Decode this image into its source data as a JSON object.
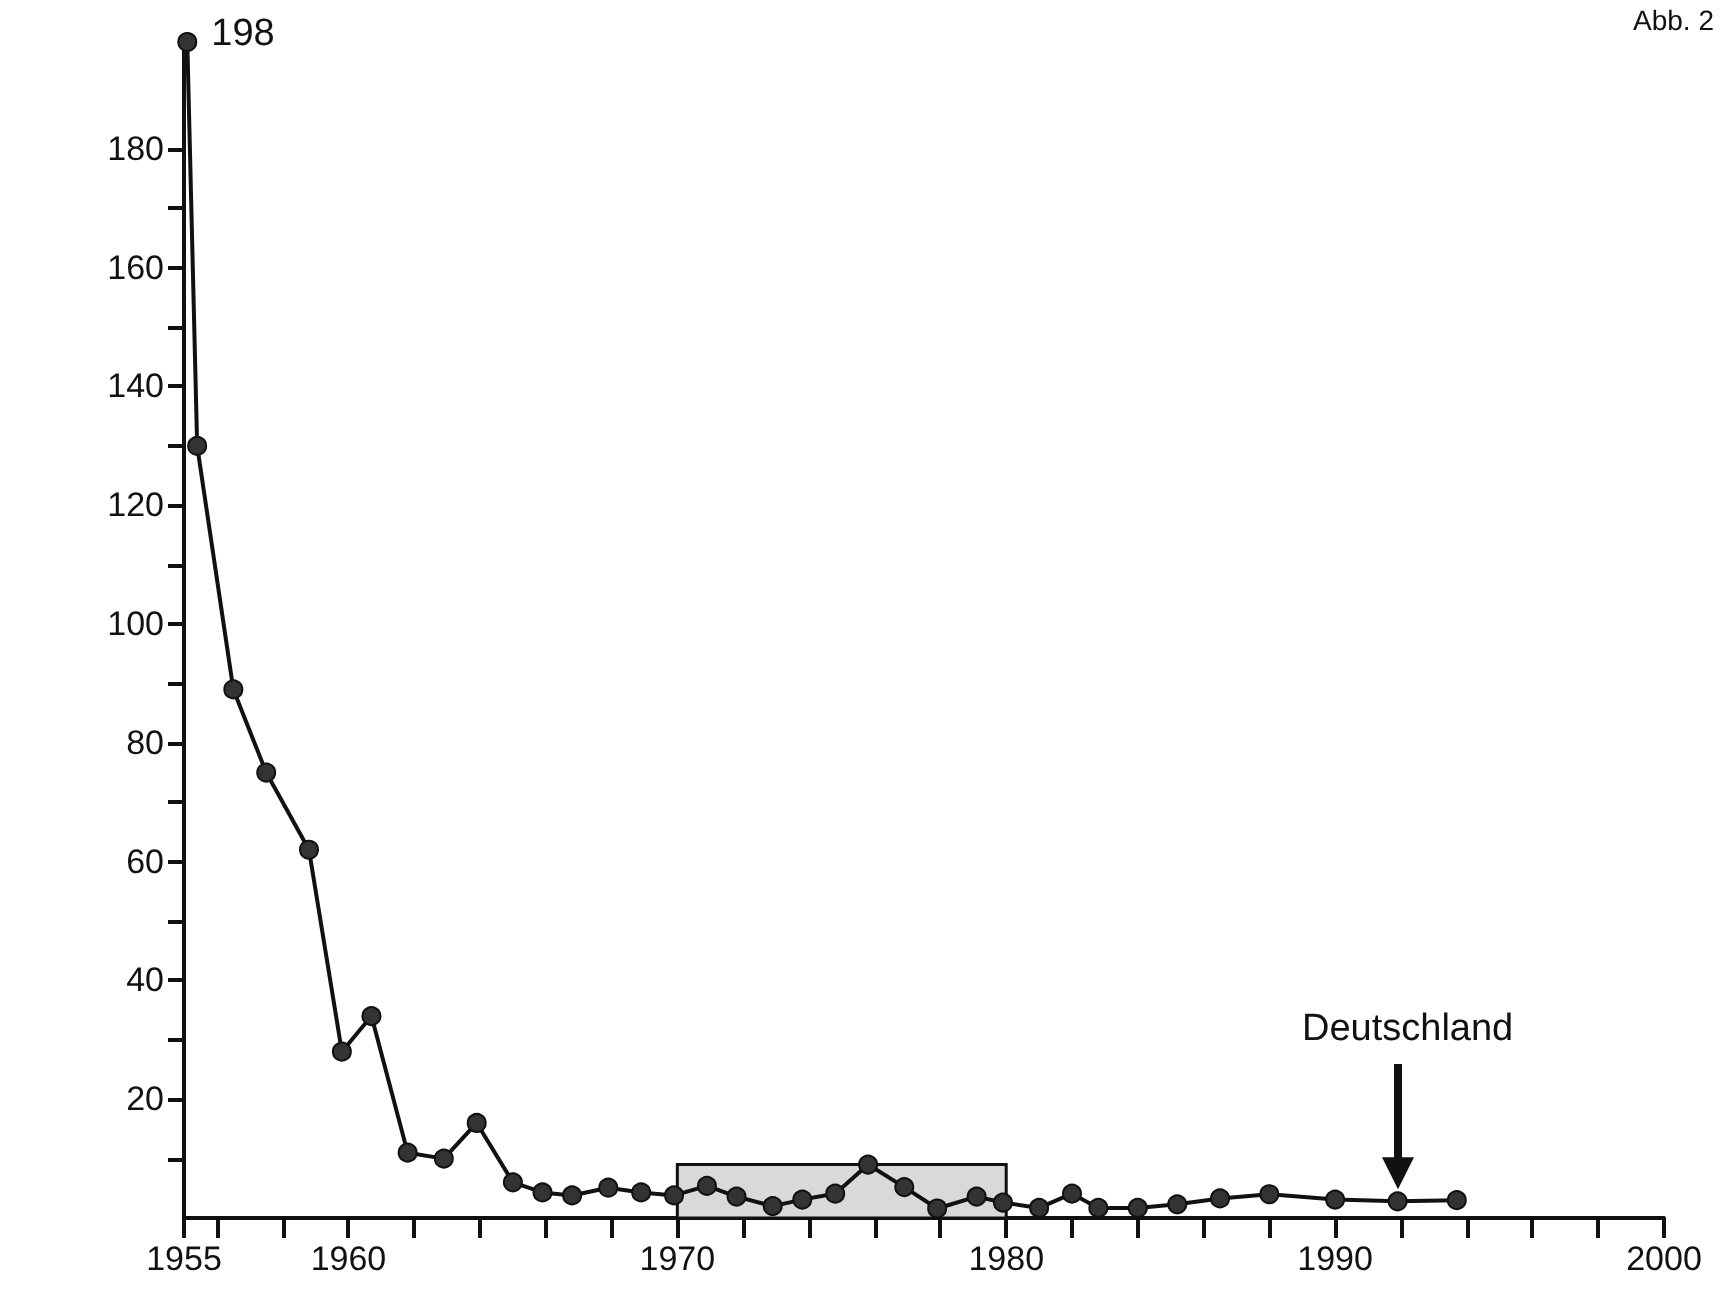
{
  "chart_data": {
    "type": "line",
    "annotations": [
      "Abb. 2",
      "Deutschland"
    ],
    "series": [
      {
        "color": "#333333",
        "x": [
          1955.1,
          1955.4,
          1956.5,
          1957.5,
          1958.8,
          1959.8,
          1960.7,
          1961.8,
          1962.9,
          1963.9,
          1965.0,
          1965.9,
          1966.8,
          1967.9,
          1968.9,
          1969.9,
          1970.9,
          1971.8,
          1972.9,
          1973.8,
          1974.8,
          1975.8,
          1976.9,
          1977.9,
          1979.1,
          1979.9,
          1981.0,
          1982.0,
          1982.8,
          1984.0,
          1985.2,
          1986.5,
          1988.0,
          1990.0,
          1991.9,
          1993.7
        ],
        "values": [
          198,
          130,
          89,
          75,
          62,
          28,
          34,
          11,
          10,
          16,
          6,
          4.3,
          3.8,
          5.1,
          4.3,
          3.8,
          5.4,
          3.6,
          2.0,
          3.1,
          4.1,
          9.0,
          5.2,
          1.6,
          3.6,
          2.6,
          1.7,
          4.1,
          1.7,
          1.7,
          2.3,
          3.3,
          4.0,
          3.1,
          2.8,
          3.0
        ],
        "value_labels": [
          "198",
          null,
          null,
          null,
          null,
          null,
          null,
          null,
          null,
          null,
          null,
          null,
          null,
          null,
          null,
          null,
          null,
          null,
          null,
          null,
          null,
          null,
          null,
          null,
          null,
          null,
          null,
          null,
          null,
          null,
          null,
          null,
          null,
          null,
          null,
          null
        ]
      }
    ],
    "bands": [
      {
        "axis": "x",
        "from": 1970,
        "to": 1980,
        "color": "#d9d9d9"
      }
    ],
    "xlim": [
      1955,
      2000
    ],
    "xticks": [
      1955,
      {
        "value": 1956,
        "label": null
      },
      {
        "value": 1958,
        "label": null
      },
      1960,
      {
        "value": 1962,
        "label": null
      },
      {
        "value": 1964,
        "label": null
      },
      {
        "value": 1966,
        "label": null
      },
      {
        "value": 1968,
        "label": null
      },
      1970,
      {
        "value": 1972,
        "label": null
      },
      {
        "value": 1974,
        "label": null
      },
      {
        "value": 1976,
        "label": null
      },
      {
        "value": 1978,
        "label": null
      },
      1980,
      {
        "value": 1982,
        "label": null
      },
      {
        "value": 1984,
        "label": null
      },
      {
        "value": 1986,
        "label": null
      },
      {
        "value": 1988,
        "label": null
      },
      1990,
      {
        "value": 1992,
        "label": null
      },
      {
        "value": 1994,
        "label": null
      },
      {
        "value": 1996,
        "label": null
      },
      {
        "value": 1998,
        "label": null
      },
      2000
    ],
    "ylim": [
      0,
      198
    ],
    "yticks": [
      {
        "value": 10,
        "label": null
      },
      20,
      {
        "value": 30,
        "label": null
      },
      40,
      {
        "value": 50,
        "label": null
      },
      60,
      {
        "value": 70,
        "label": null
      },
      80,
      {
        "value": 90,
        "label": null
      },
      100,
      {
        "value": 110,
        "label": null
      },
      120,
      {
        "value": 130,
        "label": null
      },
      140,
      {
        "value": 150,
        "label": null
      },
      160,
      {
        "value": 170,
        "label": null
      },
      180
    ],
    "grid": false,
    "marker": "circle",
    "line_style": "solid"
  }
}
